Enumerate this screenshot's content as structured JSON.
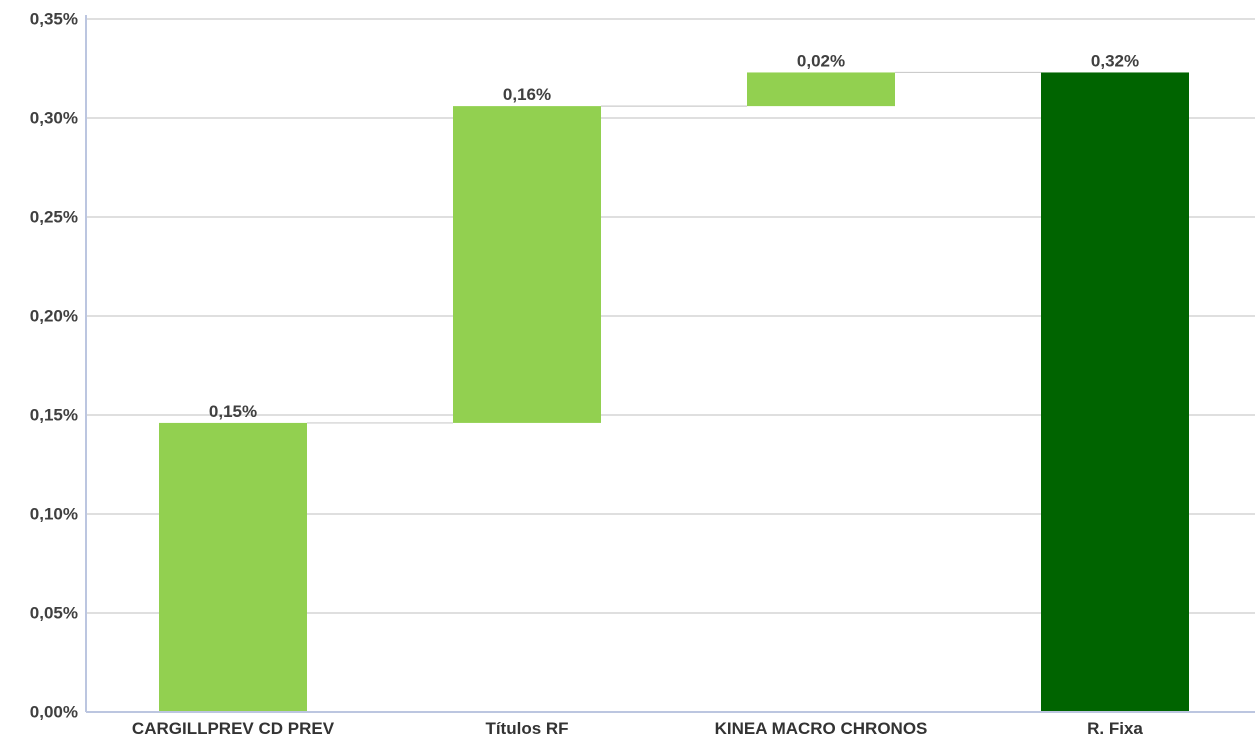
{
  "chart_data": {
    "type": "bar",
    "subtype": "waterfall",
    "title": "",
    "xlabel": "",
    "ylabel": "",
    "categories": [
      "CARGILLPREV CD PREV",
      "Títulos RF",
      "KINEA MACRO CHRONOS",
      "R. Fixa"
    ],
    "values": [
      0.146,
      0.16,
      0.017,
      0.323
    ],
    "bar_kind": [
      "increment",
      "increment",
      "increment",
      "total"
    ],
    "data_labels": [
      "0,15%",
      "0,16%",
      "0,02%",
      "0,32%"
    ],
    "ylim": [
      0,
      0.35
    ],
    "y_ticks": [
      0,
      0.05,
      0.1,
      0.15,
      0.2,
      0.25,
      0.3,
      0.35
    ],
    "y_tick_labels": [
      "0,00%",
      "0,05%",
      "0,10%",
      "0,15%",
      "0,20%",
      "0,25%",
      "0,30%",
      "0,35%"
    ],
    "grid": true,
    "connector_lines": true,
    "colors": {
      "increment": "#92d050",
      "total": "#006400",
      "grid": "#bfbfbf",
      "axis": "#bcc6e0",
      "connector": "#cccccc"
    }
  }
}
